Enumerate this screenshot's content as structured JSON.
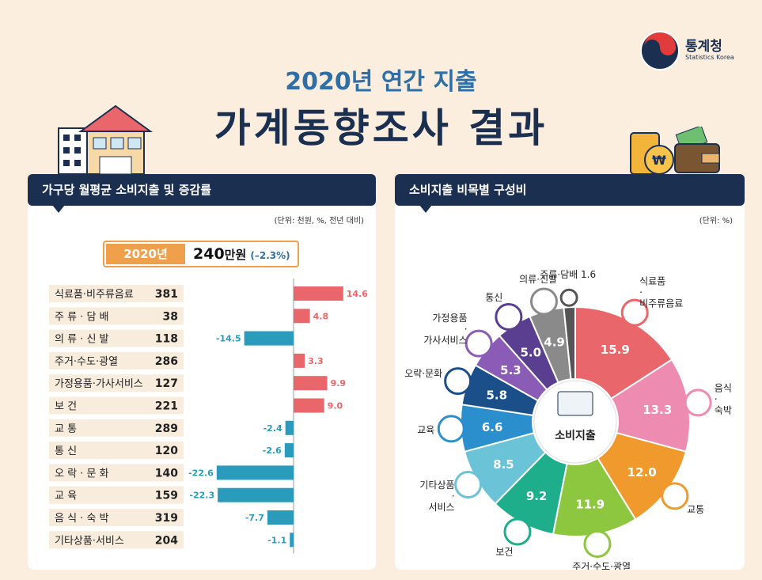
{
  "header": {
    "subtitle": "2020년 연간 지출",
    "title": "가계동향조사 결과",
    "logo_name": "통계청",
    "logo_sub": "Statistics Korea"
  },
  "left_panel": {
    "title": "가구당 월평균 소비지출 및 증감률",
    "unit": "(단위: 천원, %, 전년 대비)",
    "total_year": "2020년",
    "total_value": "240",
    "total_unit": "만원",
    "total_change": "(–2.3%)"
  },
  "right_panel": {
    "title": "소비지출 비목별 구성비",
    "unit": "(단위: %)",
    "center_label": "소비지출"
  },
  "chart_data": [
    {
      "type": "bar",
      "orientation": "horizontal",
      "categories": [
        "식료품·비주류음료",
        "주 류 · 담 배",
        "의 류 · 신 발",
        "주거·수도·광열",
        "가정용품·가사서비스",
        "보 건",
        "교 통",
        "통 신",
        "오 락 · 문 화",
        "교 육",
        "음 식 · 숙 박",
        "기타상품·서비스"
      ],
      "amounts": [
        "381",
        "38",
        "118",
        "286",
        "127",
        "221",
        "289",
        "120",
        "140",
        "159",
        "319",
        "204"
      ],
      "values": [
        14.6,
        4.8,
        -14.5,
        3.3,
        9.9,
        9.0,
        -2.4,
        -2.6,
        -22.6,
        -22.3,
        -7.7,
        -1.1
      ],
      "value_labels": [
        "14.6",
        "4.8",
        "-14.5",
        "3.3",
        "9.9",
        "9.0",
        "-2.4",
        "-2.6",
        "-22.6",
        "-22.3",
        "-7.7",
        "-1.1"
      ],
      "colors": {
        "positive": "#e9666a",
        "negative": "#2b9bbc"
      }
    },
    {
      "type": "pie",
      "style": "donut",
      "slices": [
        {
          "label": "식료품·비주류음료",
          "value": 15.9,
          "color": "#e9666a"
        },
        {
          "label": "음식·숙박",
          "value": 13.3,
          "color": "#ee8bb0"
        },
        {
          "label": "교통",
          "value": 12.0,
          "color": "#f09a2e"
        },
        {
          "label": "주거·수도·광열",
          "value": 11.9,
          "color": "#8dc63f"
        },
        {
          "label": "보건",
          "value": 9.2,
          "color": "#1fae8c"
        },
        {
          "label": "기타상품·서비스",
          "value": 8.5,
          "color": "#6ac3d6"
        },
        {
          "label": "교육",
          "value": 6.6,
          "color": "#2b8fce"
        },
        {
          "label": "오락·문화",
          "value": 5.8,
          "color": "#1b4f8a"
        },
        {
          "label": "가정용품·가사서비스",
          "value": 5.3,
          "color": "#8a5cb5"
        },
        {
          "label": "통신",
          "value": 5.0,
          "color": "#5a3e8f"
        },
        {
          "label": "의류·신발",
          "value": 4.9,
          "color": "#8a8a8a"
        },
        {
          "label": "주류·담배",
          "value": 1.6,
          "color": "#555555"
        }
      ],
      "value_labels": [
        "15.9",
        "13.3",
        "12.0",
        "11.9",
        "9.2",
        "8.5",
        "6.6",
        "5.8",
        "5.3",
        "5.0",
        "4.9",
        "1.6"
      ],
      "outer_labels": [
        "식료품\n·\n비주류음료",
        "음식\n·\n숙박",
        "교통",
        "주거·수도·광열",
        "보건",
        "기타상품\n·\n서비스",
        "교육",
        "오락·문화",
        "가정용품\n·\n가사서비스",
        "통신",
        "의류·신발",
        "주류·담배 1.6"
      ]
    }
  ]
}
